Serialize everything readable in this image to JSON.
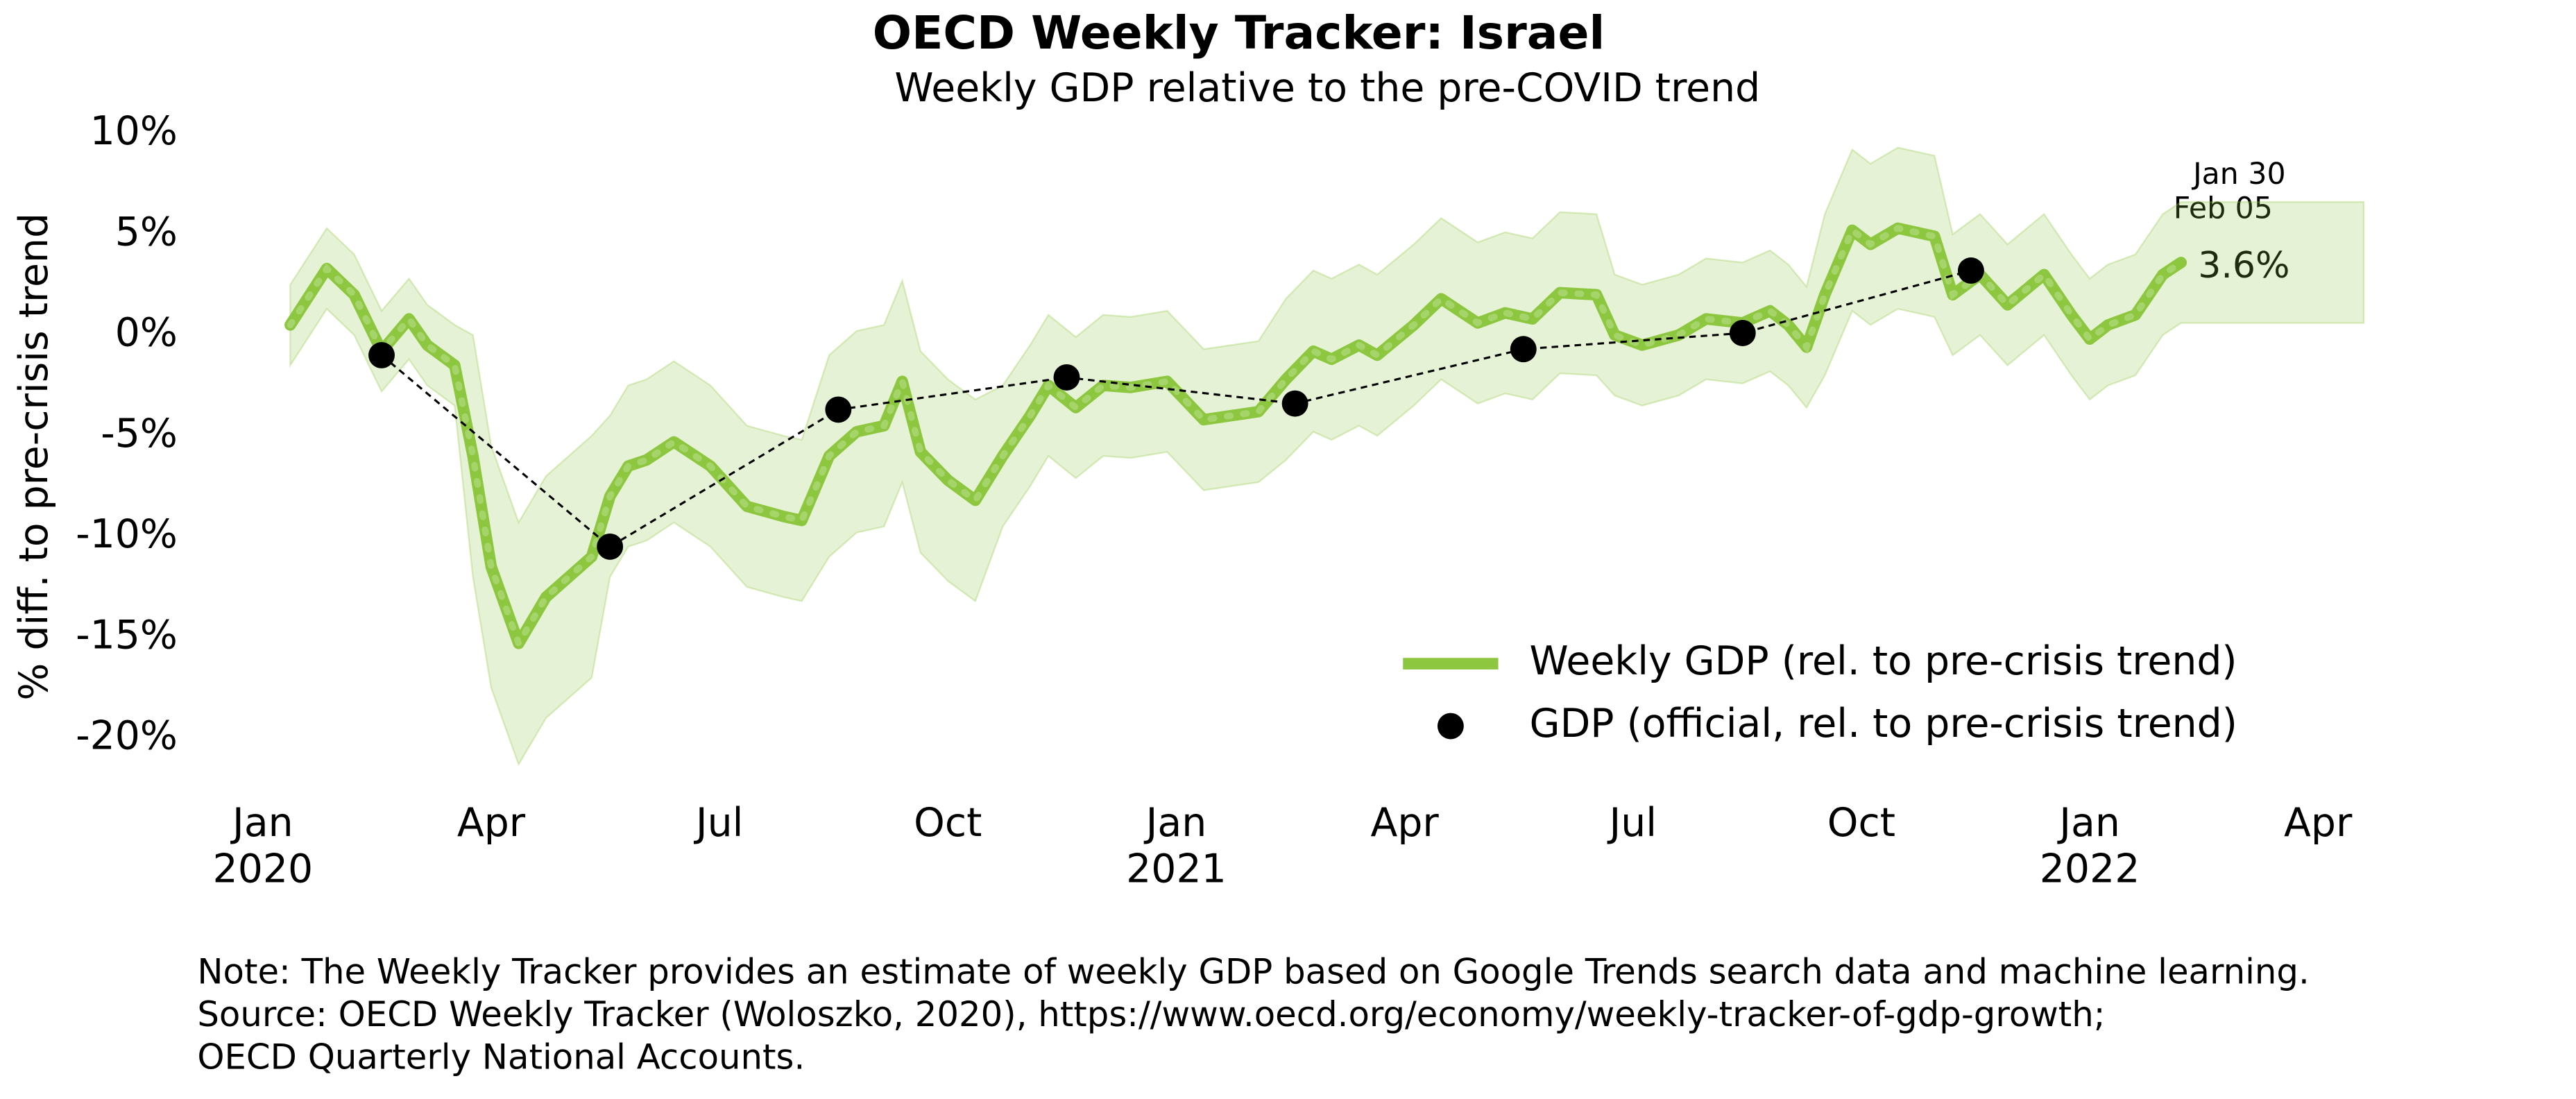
{
  "chart_data": {
    "type": "line",
    "title": "OECD Weekly Tracker: Israel",
    "subtitle": "Weekly GDP relative to the pre-COVID trend",
    "y_label": "% diff. to pre-crisis trend",
    "xlim": [
      2019.93,
      2022.32
    ],
    "ylim": [
      -22.5,
      11
    ],
    "xticks": [
      {
        "value": 2020.0,
        "label": "Jan\n2020"
      },
      {
        "value": 2020.25,
        "label": "Apr"
      },
      {
        "value": 2020.5,
        "label": "Jul"
      },
      {
        "value": 2020.75,
        "label": "Oct"
      },
      {
        "value": 2021.0,
        "label": "Jan\n2021"
      },
      {
        "value": 2021.25,
        "label": "Apr"
      },
      {
        "value": 2021.5,
        "label": "Jul"
      },
      {
        "value": 2021.75,
        "label": "Oct"
      },
      {
        "value": 2022.0,
        "label": "Jan\n2022"
      },
      {
        "value": 2022.25,
        "label": "Apr"
      }
    ],
    "yticks": [
      {
        "value": 10,
        "label": "10%"
      },
      {
        "value": 5,
        "label": "5%"
      },
      {
        "value": 0,
        "label": "0%"
      },
      {
        "value": -5,
        "label": "-5%"
      },
      {
        "value": -10,
        "label": "-10%"
      },
      {
        "value": -15,
        "label": "-15%"
      },
      {
        "value": -20,
        "label": "-20%"
      }
    ],
    "legend": "lower right",
    "series": [
      {
        "name": "Weekly GDP (rel. to pre-crisis trend)",
        "color": "#8dc63f",
        "style": "line",
        "x": [
          2020.03,
          2020.07,
          2020.1,
          2020.13,
          2020.16,
          2020.18,
          2020.21,
          2020.23,
          2020.25,
          2020.28,
          2020.31,
          2020.33,
          2020.36,
          2020.38,
          2020.4,
          2020.42,
          2020.45,
          2020.49,
          2020.53,
          2020.57,
          2020.59,
          2020.62,
          2020.65,
          2020.68,
          2020.7,
          2020.72,
          2020.75,
          2020.78,
          2020.81,
          2020.84,
          2020.86,
          2020.89,
          2020.92,
          2020.95,
          2020.99,
          2021.03,
          2021.06,
          2021.09,
          2021.12,
          2021.15,
          2021.17,
          2021.2,
          2021.22,
          2021.26,
          2021.29,
          2021.33,
          2021.36,
          2021.39,
          2021.42,
          2021.46,
          2021.48,
          2021.51,
          2021.55,
          2021.58,
          2021.62,
          2021.65,
          2021.67,
          2021.69,
          2021.71,
          2021.74,
          2021.76,
          2021.79,
          2021.83,
          2021.85,
          2021.88,
          2021.91,
          2021.95,
          2021.98,
          2022.0,
          2022.02,
          2022.05,
          2022.08,
          2022.1
        ],
        "values": [
          0.5,
          3.3,
          2,
          -0.8,
          0.8,
          -0.5,
          -1.5,
          -6,
          -11.5,
          -15.3,
          -13,
          -12.2,
          -11,
          -8,
          -6.5,
          -6.2,
          -5.3,
          -6.5,
          -8.5,
          -9,
          -9.2,
          -6,
          -4.8,
          -4.5,
          -2.3,
          -5.8,
          -7.2,
          -8.2,
          -6,
          -4,
          -2.5,
          -3.6,
          -2.5,
          -2.6,
          -2.3,
          -4.2,
          -4,
          -3.8,
          -2.2,
          -0.8,
          -1.2,
          -0.5,
          -1,
          0.5,
          1.8,
          0.6,
          1.1,
          0.8,
          2.1,
          2,
          0,
          -0.5,
          0,
          0.8,
          0.6,
          1.2,
          0.5,
          -0.6,
          2,
          5.2,
          4.5,
          5.3,
          4.9,
          2,
          3,
          1.5,
          3,
          1,
          -0.2,
          0.5,
          1,
          3,
          3.6
        ]
      },
      {
        "name": "GDP (official, rel. to pre-crisis trend)",
        "color": "#000000",
        "style": "scatter",
        "x": [
          2020.13,
          2020.38,
          2020.63,
          2020.88,
          2021.13,
          2021.38,
          2021.62,
          2021.87
        ],
        "values": [
          -1,
          -10.5,
          -3.7,
          -2.1,
          -3.4,
          -0.7,
          0.1,
          3.2
        ]
      }
    ],
    "band": {
      "color": "#8dc63f",
      "x": [
        2020.03,
        2020.07,
        2020.1,
        2020.13,
        2020.16,
        2020.18,
        2020.21,
        2020.23,
        2020.25,
        2020.28,
        2020.31,
        2020.33,
        2020.36,
        2020.38,
        2020.4,
        2020.42,
        2020.45,
        2020.49,
        2020.53,
        2020.57,
        2020.59,
        2020.62,
        2020.65,
        2020.68,
        2020.7,
        2020.72,
        2020.75,
        2020.78,
        2020.81,
        2020.84,
        2020.86,
        2020.89,
        2020.92,
        2020.95,
        2020.99,
        2021.03,
        2021.06,
        2021.09,
        2021.12,
        2021.15,
        2021.17,
        2021.2,
        2021.22,
        2021.26,
        2021.29,
        2021.33,
        2021.36,
        2021.39,
        2021.42,
        2021.46,
        2021.48,
        2021.51,
        2021.55,
        2021.58,
        2021.62,
        2021.65,
        2021.67,
        2021.69,
        2021.71,
        2021.74,
        2021.76,
        2021.79,
        2021.83,
        2021.85,
        2021.88,
        2021.91,
        2021.95,
        2021.98,
        2022.0,
        2022.02,
        2022.05,
        2022.08,
        2022.1,
        2022.11,
        2022.3
      ],
      "upper": [
        2.5,
        5.3,
        4,
        1.2,
        2.8,
        1.5,
        0.5,
        0,
        -5.5,
        -9.3,
        -7,
        -6.2,
        -5,
        -4,
        -2.5,
        -2.2,
        -1.3,
        -2.5,
        -4.5,
        -5,
        -5.2,
        -1,
        0.2,
        0.5,
        2.7,
        -0.8,
        -2.2,
        -3.2,
        -2.5,
        -0.5,
        1,
        -0.1,
        1,
        0.9,
        1.2,
        -0.7,
        -0.5,
        -0.3,
        1.8,
        3.2,
        2.8,
        3.5,
        3,
        4.5,
        5.8,
        4.6,
        5.1,
        4.8,
        6.1,
        6,
        3,
        2.5,
        3,
        3.8,
        3.6,
        4.2,
        3.5,
        2.4,
        6,
        9.2,
        8.5,
        9.3,
        8.9,
        5,
        6,
        4.5,
        6,
        4,
        2.8,
        3.5,
        4,
        6,
        6.6,
        6.6,
        6.6
      ],
      "lower": [
        -1.5,
        1.3,
        0,
        -2.8,
        -1.2,
        -2.5,
        -3.5,
        -12,
        -17.5,
        -21.3,
        -19,
        -18.2,
        -17,
        -12,
        -10.5,
        -10.2,
        -9.3,
        -10.5,
        -12.5,
        -13,
        -13.2,
        -11,
        -9.8,
        -9.5,
        -7.3,
        -10.8,
        -12.2,
        -13.2,
        -9.5,
        -7.5,
        -6,
        -7.1,
        -6,
        -6.1,
        -5.8,
        -7.7,
        -7.5,
        -7.3,
        -6.2,
        -4.8,
        -5.2,
        -4.5,
        -5,
        -3.5,
        -2.2,
        -3.4,
        -2.9,
        -3.2,
        -1.9,
        -2,
        -3,
        -3.5,
        -3,
        -2.2,
        -2.4,
        -1.8,
        -2.5,
        -3.6,
        -2,
        1.2,
        0.5,
        1.3,
        0.9,
        -1,
        0,
        -1.5,
        0,
        -2,
        -3.2,
        -2.5,
        -2,
        0,
        0.6,
        0.6,
        0.6
      ]
    },
    "annotations": [
      "Jan 30",
      "Feb 05",
      "3.6%"
    ],
    "notes": [
      "Note: The Weekly Tracker provides an estimate of weekly GDP based on Google Trends search data and machine learning.",
      "Source: OECD Weekly Tracker (Woloszko, 2020), https://www.oecd.org/economy/weekly-tracker-of-gdp-growth;",
      "OECD Quarterly National Accounts."
    ]
  }
}
